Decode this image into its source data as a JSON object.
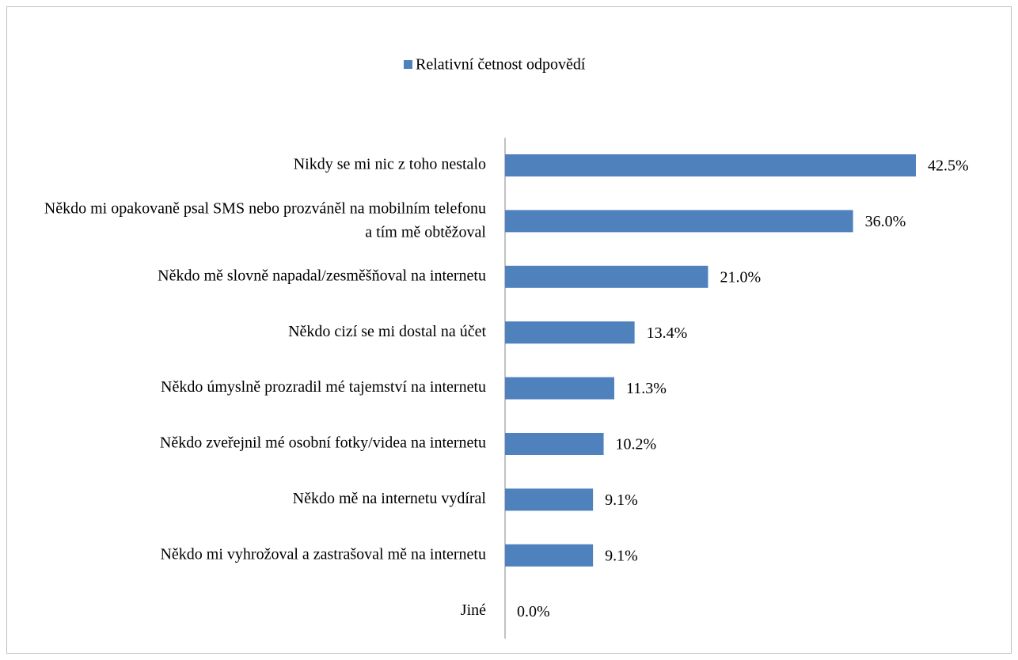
{
  "chart_data": {
    "type": "bar",
    "orientation": "horizontal",
    "categories": [
      "Nikdy se mi nic z toho nestalo",
      "Někdo mi opakovaně psal SMS nebo prozváněl na mobilním telefonu a tím mě obtěžoval",
      "Někdo mě slovně napadal/zesměšňoval na internetu",
      "Někdo cizí se mi dostal na účet",
      "Někdo úmyslně prozradil mé tajemství na internetu",
      "Někdo zveřejnil mé osobní fotky/videa na internetu",
      "Někdo mě na internetu vydíral",
      "Někdo mi vyhrožoval a zastrašoval mě na internetu",
      "Jiné"
    ],
    "series": [
      {
        "name": "Relativní četnost odpovědí",
        "color": "#4f81bd",
        "values": [
          42.5,
          36.0,
          21.0,
          13.4,
          11.3,
          10.2,
          9.1,
          9.1,
          0.0
        ],
        "value_labels": [
          "42.5%",
          "36.0%",
          "21.0%",
          "13.4%",
          "11.3%",
          "10.2%",
          "9.1%",
          "9.1%",
          "0.0%"
        ]
      }
    ],
    "legend": "top"
  }
}
